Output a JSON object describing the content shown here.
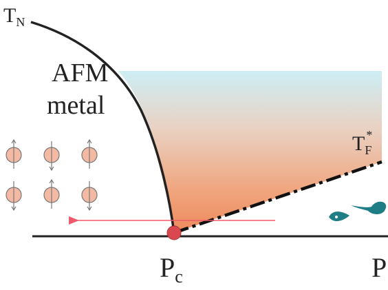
{
  "labels": {
    "tn": {
      "main": "T",
      "sub": "N"
    },
    "afm": "AFM",
    "metal": "metal",
    "tf": {
      "main": "T",
      "sub": "F",
      "sup": "*"
    },
    "pc": {
      "main": "P",
      "sub": "c"
    },
    "p": "P"
  }
}
